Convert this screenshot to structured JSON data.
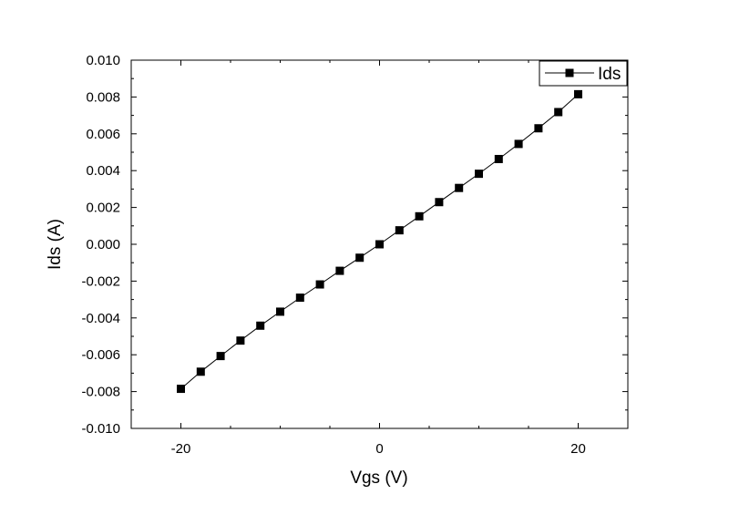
{
  "chart_data": {
    "type": "line",
    "xlabel": "Vgs (V)",
    "ylabel": "Ids (A)",
    "xlim": [
      -25,
      25
    ],
    "ylim": [
      -0.01,
      0.01
    ],
    "xticks": [
      -20,
      0,
      20
    ],
    "xtick_labels": [
      "-20",
      "0",
      "20"
    ],
    "yticks": [
      -0.01,
      -0.008,
      -0.006,
      -0.004,
      -0.002,
      0.0,
      0.002,
      0.004,
      0.006,
      0.008,
      0.01
    ],
    "ytick_labels": [
      "-0.010",
      "-0.008",
      "-0.006",
      "-0.004",
      "-0.002",
      "0.000",
      "0.002",
      "0.004",
      "0.006",
      "0.008",
      "0.010"
    ],
    "grid": false,
    "legend_position": "top-right",
    "series": [
      {
        "name": "Ids",
        "marker": "square",
        "color": "#000000",
        "x": [
          -20,
          -18,
          -16,
          -14,
          -12,
          -10,
          -8,
          -6,
          -4,
          -2,
          0,
          2,
          4,
          6,
          8,
          10,
          12,
          14,
          16,
          18,
          20
        ],
        "y": [
          -0.00785,
          -0.00692,
          -0.00607,
          -0.00523,
          -0.00442,
          -0.00366,
          -0.0029,
          -0.00218,
          -0.00144,
          -0.00073,
          0.0,
          0.00076,
          0.00152,
          0.00229,
          0.00306,
          0.00383,
          0.00463,
          0.00545,
          0.0063,
          0.00718,
          0.00815
        ]
      }
    ]
  }
}
